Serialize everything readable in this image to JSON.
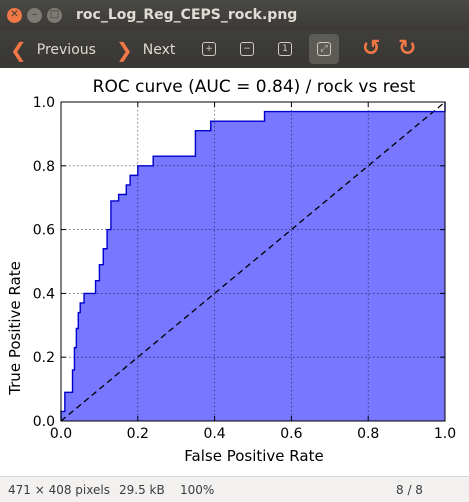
{
  "window": {
    "title": "roc_Log_Reg_CEPS_rock.png"
  },
  "toolbar": {
    "previous_label": "Previous",
    "next_label": "Next",
    "accent": "#f07746"
  },
  "chart_data": {
    "type": "area",
    "title": "ROC curve (AUC = 0.84) / rock vs rest",
    "xlabel": "False Positive Rate",
    "ylabel": "True Positive Rate",
    "xlim": [
      0.0,
      1.0
    ],
    "ylim": [
      0.0,
      1.0
    ],
    "xticks": [
      "0.0",
      "0.2",
      "0.4",
      "0.6",
      "0.8",
      "1.0"
    ],
    "yticks": [
      "0.0",
      "0.2",
      "0.4",
      "0.6",
      "0.8",
      "1.0"
    ],
    "grid": true,
    "fill_color": "#7777ff",
    "line_color": "#0000cc",
    "diagonal": "dashed",
    "series": [
      {
        "x": [
          0.0,
          0.0,
          0.01,
          0.01,
          0.03,
          0.03,
          0.035,
          0.035,
          0.04,
          0.04,
          0.045,
          0.045,
          0.05,
          0.05,
          0.06,
          0.06,
          0.09,
          0.09,
          0.1,
          0.1,
          0.11,
          0.11,
          0.12,
          0.12,
          0.13,
          0.13,
          0.15,
          0.15,
          0.17,
          0.17,
          0.18,
          0.18,
          0.2,
          0.2,
          0.24,
          0.24,
          0.35,
          0.35,
          0.39,
          0.39,
          0.53,
          0.53,
          1.0,
          1.0
        ],
        "y": [
          0.0,
          0.03,
          0.03,
          0.09,
          0.09,
          0.16,
          0.16,
          0.23,
          0.23,
          0.29,
          0.29,
          0.34,
          0.34,
          0.37,
          0.37,
          0.4,
          0.4,
          0.44,
          0.44,
          0.49,
          0.49,
          0.54,
          0.54,
          0.6,
          0.6,
          0.69,
          0.69,
          0.71,
          0.71,
          0.74,
          0.74,
          0.77,
          0.77,
          0.8,
          0.8,
          0.83,
          0.83,
          0.91,
          0.91,
          0.94,
          0.94,
          0.97,
          0.97,
          1.0
        ]
      }
    ]
  },
  "statusbar": {
    "dimensions": "471 × 408 pixels",
    "filesize": "29.5 kB",
    "zoom": "100%",
    "position": "8 / 8"
  }
}
